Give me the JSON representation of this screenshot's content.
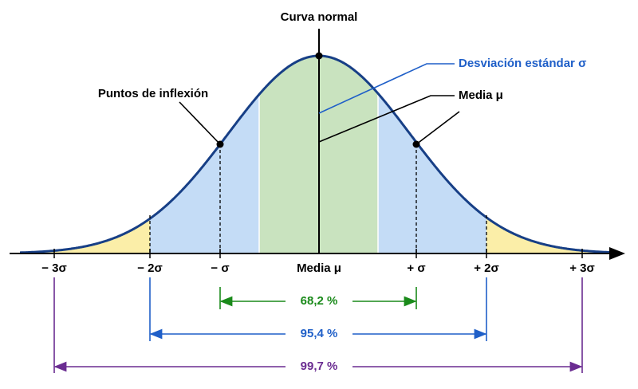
{
  "title": "Curva normal",
  "annotations": {
    "inflection": "Puntos de inflexión",
    "std": "Desviación estándar σ",
    "mean": "Media μ"
  },
  "axis_labels": [
    "− 3σ",
    "− 2σ",
    "− σ",
    "Media μ",
    "+ σ",
    "+ 2σ",
    "+ 3σ"
  ],
  "ranges": [
    "68,2 %",
    "95,4 %",
    "99,7 %"
  ]
}
